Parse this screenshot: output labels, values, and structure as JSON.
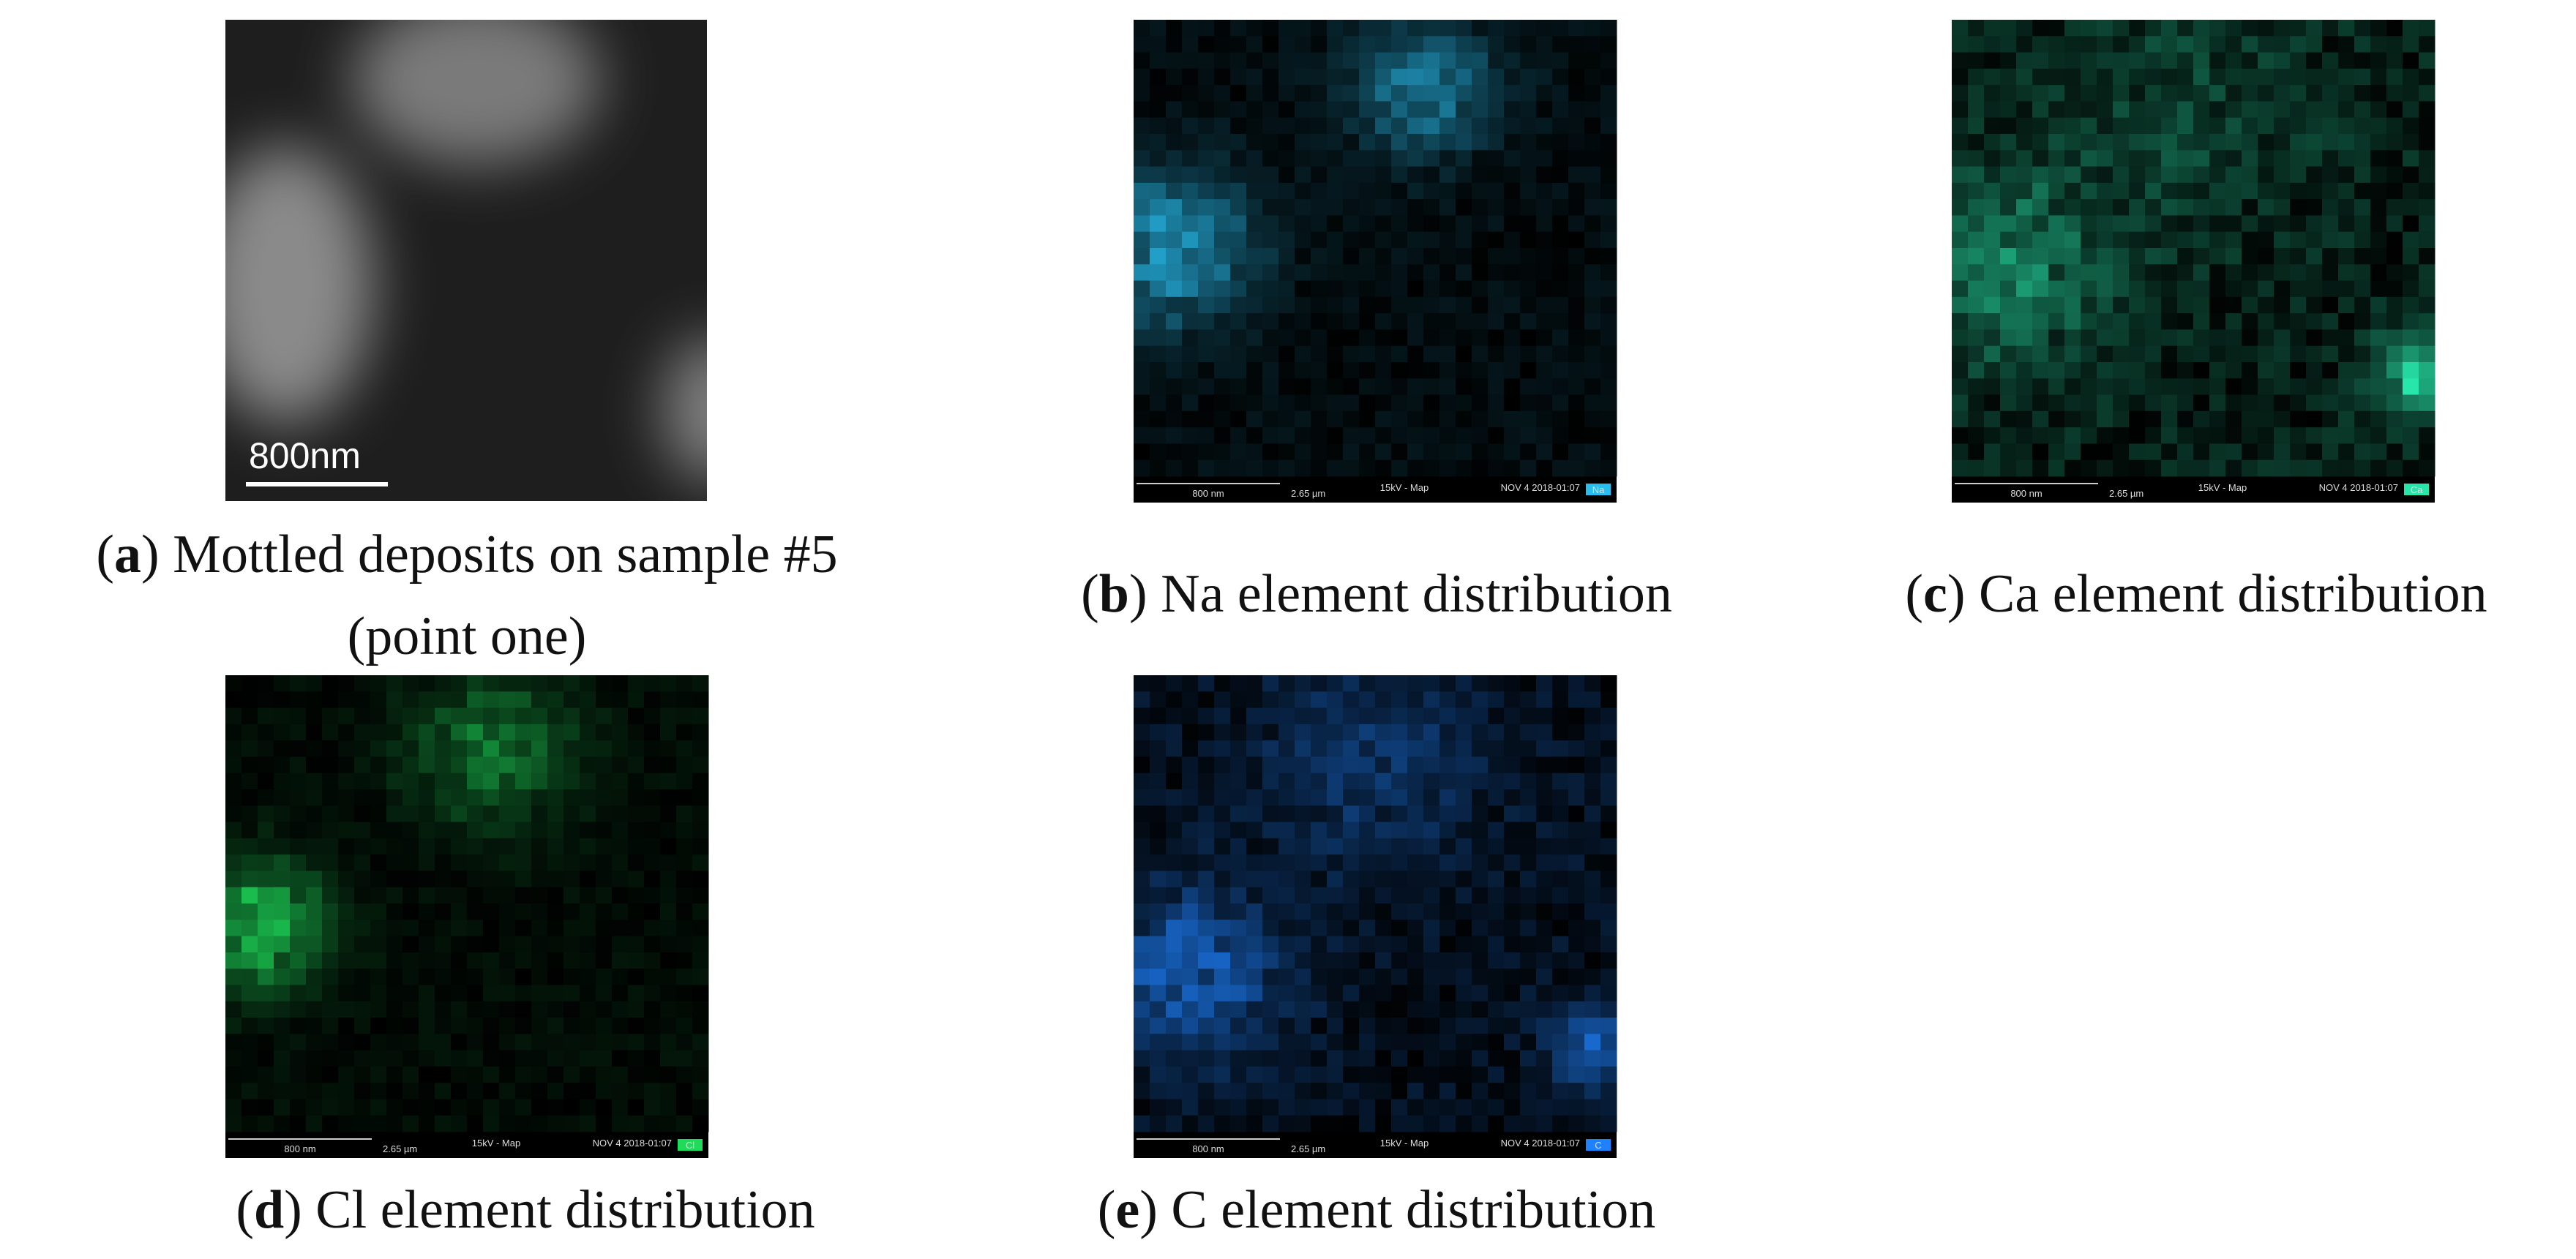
{
  "panels": [
    {
      "caption_parts": [
        "(",
        "a",
        ") Mottled deposits on sample #5"
      ],
      "caption_line2": "(point one)",
      "scale_label": "800nm"
    },
    {
      "caption_parts": [
        "(",
        "b",
        ") Na element distribution"
      ],
      "footer": {
        "scale": "800 nm",
        "field": "2.65 µm",
        "mode": "15kV - Map",
        "date": "NOV 4 2018-01:07",
        "element": "Na"
      }
    },
    {
      "caption_parts": [
        "(",
        "c",
        ") Ca element distribution"
      ],
      "footer": {
        "scale": "800 nm",
        "field": "2.65 µm",
        "mode": "15kV - Map",
        "date": "NOV 4 2018-01:07",
        "element": "Ca"
      }
    },
    {
      "caption_parts": [
        "(",
        "d",
        ") Cl element distribution"
      ],
      "footer": {
        "scale": "800 nm",
        "field": "2.65 µm",
        "mode": "15kV - Map",
        "date": "NOV 4 2018-01:07",
        "element": "Cl"
      }
    },
    {
      "caption_parts": [
        "(",
        "e",
        ") C element distribution"
      ],
      "footer": {
        "scale": "800 nm",
        "field": "2.65 µm",
        "mode": "15kV - Map",
        "date": "NOV 4 2018-01:07",
        "element": "C"
      }
    }
  ]
}
